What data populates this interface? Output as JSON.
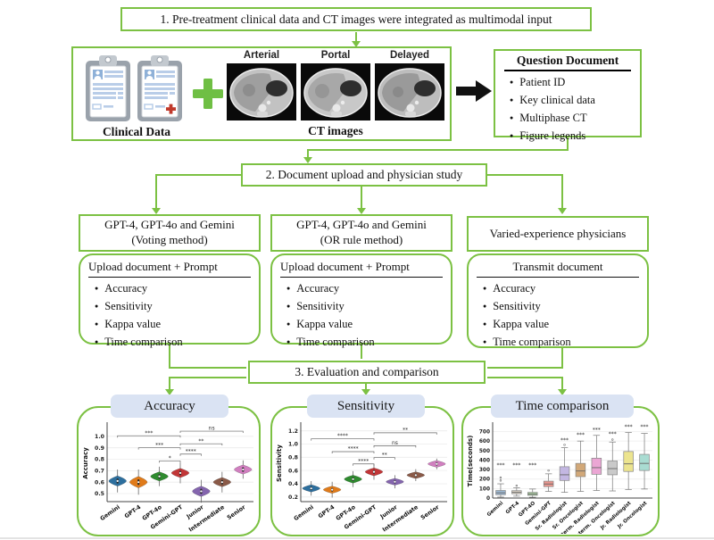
{
  "theme": {
    "green": "#7cc143",
    "header_pill_fill": "#dae3f3",
    "text": "#111111"
  },
  "steps": {
    "step1": "1. Pre-treatment clinical data and CT images were integrated as multimodal input",
    "step2": "2. Document upload and physician study",
    "step3": "3. Evaluation and comparison"
  },
  "input_panel": {
    "clinical_label": "Clinical Data",
    "ct_label": "CT images",
    "phases": [
      "Arterial",
      "Portal",
      "Delayed"
    ],
    "icons": [
      "clipboard-icon",
      "clipboard-icon",
      "plus-icon",
      "ct-image",
      "ct-image",
      "ct-image",
      "arrow-right-icon"
    ]
  },
  "question_document": {
    "title": "Question Document",
    "items": [
      "Patient ID",
      "Key clinical data",
      "Multiphase CT",
      "Figure legends"
    ]
  },
  "columns": [
    {
      "title_line1": "GPT-4, GPT-4o and Gemini",
      "title_line2": "(Voting method)",
      "panel_title": "Upload document + Prompt",
      "items": [
        "Accuracy",
        "Sensitivity",
        "Kappa value",
        "Time comparison"
      ]
    },
    {
      "title_line1": "GPT-4, GPT-4o and Gemini",
      "title_line2": "(OR rule method)",
      "panel_title": "Upload document + Prompt",
      "items": [
        "Accuracy",
        "Sensitivity",
        "Kappa value",
        "Time comparison"
      ]
    },
    {
      "title_line1": "Varied-experience physicians",
      "title_line2": "",
      "panel_title": "Transmit document",
      "items": [
        "Accuracy",
        "Sensitivity",
        "Kappa value",
        "Time comparison"
      ]
    }
  ],
  "chart_data": [
    {
      "type": "violin",
      "title": "Accuracy",
      "ylabel": "Accuracy",
      "categories": [
        "Gemini",
        "GPT-4",
        "GPT-4o",
        "Gemini-GPT",
        "Junior",
        "Intermediate",
        "Senior"
      ],
      "medians": [
        0.61,
        0.6,
        0.65,
        0.68,
        0.52,
        0.6,
        0.71
      ],
      "spread": [
        0.045,
        0.05,
        0.04,
        0.04,
        0.045,
        0.04,
        0.04
      ],
      "whisker": [
        0.1,
        0.11,
        0.085,
        0.09,
        0.1,
        0.09,
        0.08
      ],
      "colors": [
        "#2d6f9e",
        "#e07b1a",
        "#2f8b2f",
        "#c13637",
        "#8465ae",
        "#8a5a48",
        "#d17fc0"
      ],
      "ylim": [
        0.43,
        1.1
      ],
      "yticks": [
        0.5,
        0.6,
        0.7,
        0.8,
        0.9,
        1.0
      ],
      "significance": [
        {
          "a": 0,
          "b": 3,
          "y": 1.005,
          "label": "***"
        },
        {
          "a": 1,
          "b": 3,
          "y": 0.9,
          "label": "***"
        },
        {
          "a": 2,
          "b": 3,
          "y": 0.785,
          "label": "*"
        },
        {
          "a": 3,
          "b": 4,
          "y": 0.845,
          "label": "****"
        },
        {
          "a": 3,
          "b": 5,
          "y": 0.935,
          "label": "**"
        },
        {
          "a": 3,
          "b": 6,
          "y": 1.045,
          "label": "ns"
        }
      ]
    },
    {
      "type": "violin",
      "title": "Sensitivity",
      "ylabel": "Sensitivity",
      "categories": [
        "Gemini",
        "GPT-4",
        "GPT-4o",
        "Gemini-GPT",
        "Junior",
        "Intermediate",
        "Senior"
      ],
      "medians": [
        0.33,
        0.31,
        0.47,
        0.58,
        0.43,
        0.53,
        0.7
      ],
      "spread": [
        0.055,
        0.055,
        0.06,
        0.06,
        0.05,
        0.05,
        0.05
      ],
      "whisker": [
        0.11,
        0.12,
        0.12,
        0.12,
        0.1,
        0.09,
        0.08
      ],
      "colors": [
        "#2d6f9e",
        "#e07b1a",
        "#2f8b2f",
        "#c13637",
        "#8465ae",
        "#8a5a48",
        "#d17fc0"
      ],
      "ylim": [
        0.13,
        1.29
      ],
      "yticks": [
        0.2,
        0.4,
        0.6,
        0.8,
        1.0,
        1.2
      ],
      "significance": [
        {
          "a": 0,
          "b": 3,
          "y": 1.08,
          "label": "****"
        },
        {
          "a": 1,
          "b": 3,
          "y": 0.885,
          "label": "****"
        },
        {
          "a": 2,
          "b": 3,
          "y": 0.7,
          "label": "****"
        },
        {
          "a": 3,
          "b": 4,
          "y": 0.795,
          "label": "**"
        },
        {
          "a": 3,
          "b": 5,
          "y": 0.975,
          "label": "ns"
        },
        {
          "a": 3,
          "b": 6,
          "y": 1.17,
          "label": "**"
        }
      ]
    },
    {
      "type": "box",
      "title": "Time comparison",
      "ylabel": "Time(seconds)",
      "categories": [
        "Gemini",
        "GPT-4",
        "GPT-4O",
        "Gemini-GPT",
        "Sr. Radiologist",
        "Sr. Oncologist",
        "Interm. Radiologist",
        "Interm. Oncologist",
        "Jr. Radiologist",
        "Jr. Oncologist"
      ],
      "boxes": [
        {
          "lo": 10,
          "q1": 35,
          "med": 55,
          "q3": 80,
          "hi": 150,
          "sig": "***",
          "sig_y": 330,
          "outliers": [
            185,
            215
          ]
        },
        {
          "lo": 20,
          "q1": 45,
          "med": 60,
          "q3": 78,
          "hi": 108,
          "sig": "***",
          "sig_y": 330,
          "outliers": [
            130
          ]
        },
        {
          "lo": 8,
          "q1": 28,
          "med": 42,
          "q3": 60,
          "hi": 95,
          "sig": "***",
          "sig_y": 330,
          "outliers": []
        },
        {
          "lo": 70,
          "q1": 120,
          "med": 148,
          "q3": 178,
          "hi": 255,
          "sig": "",
          "sig_y": null,
          "outliers": [
            290
          ]
        },
        {
          "lo": 60,
          "q1": 185,
          "med": 245,
          "q3": 330,
          "hi": 530,
          "sig": "***",
          "sig_y": 590,
          "outliers": [
            560
          ]
        },
        {
          "lo": 70,
          "q1": 225,
          "med": 285,
          "q3": 365,
          "hi": 600,
          "sig": "***",
          "sig_y": 650,
          "outliers": []
        },
        {
          "lo": 80,
          "q1": 250,
          "med": 320,
          "q3": 420,
          "hi": 660,
          "sig": "***",
          "sig_y": 700,
          "outliers": []
        },
        {
          "lo": 75,
          "q1": 245,
          "med": 310,
          "q3": 390,
          "hi": 590,
          "sig": "***",
          "sig_y": 660,
          "outliers": [
            615
          ]
        },
        {
          "lo": 90,
          "q1": 280,
          "med": 360,
          "q3": 490,
          "hi": 690,
          "sig": "***",
          "sig_y": 735,
          "outliers": []
        },
        {
          "lo": 95,
          "q1": 290,
          "med": 365,
          "q3": 460,
          "hi": 680,
          "sig": "***",
          "sig_y": 735,
          "outliers": []
        }
      ],
      "colors": [
        "#9db8d2",
        "#d8cfc2",
        "#abd1a2",
        "#e8968e",
        "#c3b7e2",
        "#d2a878",
        "#eba6d4",
        "#c9c9c9",
        "#ece48e",
        "#a9dcd2"
      ],
      "ylim": [
        0,
        780
      ],
      "yticks": [
        0,
        100,
        200,
        300,
        400,
        500,
        600,
        700
      ]
    }
  ]
}
